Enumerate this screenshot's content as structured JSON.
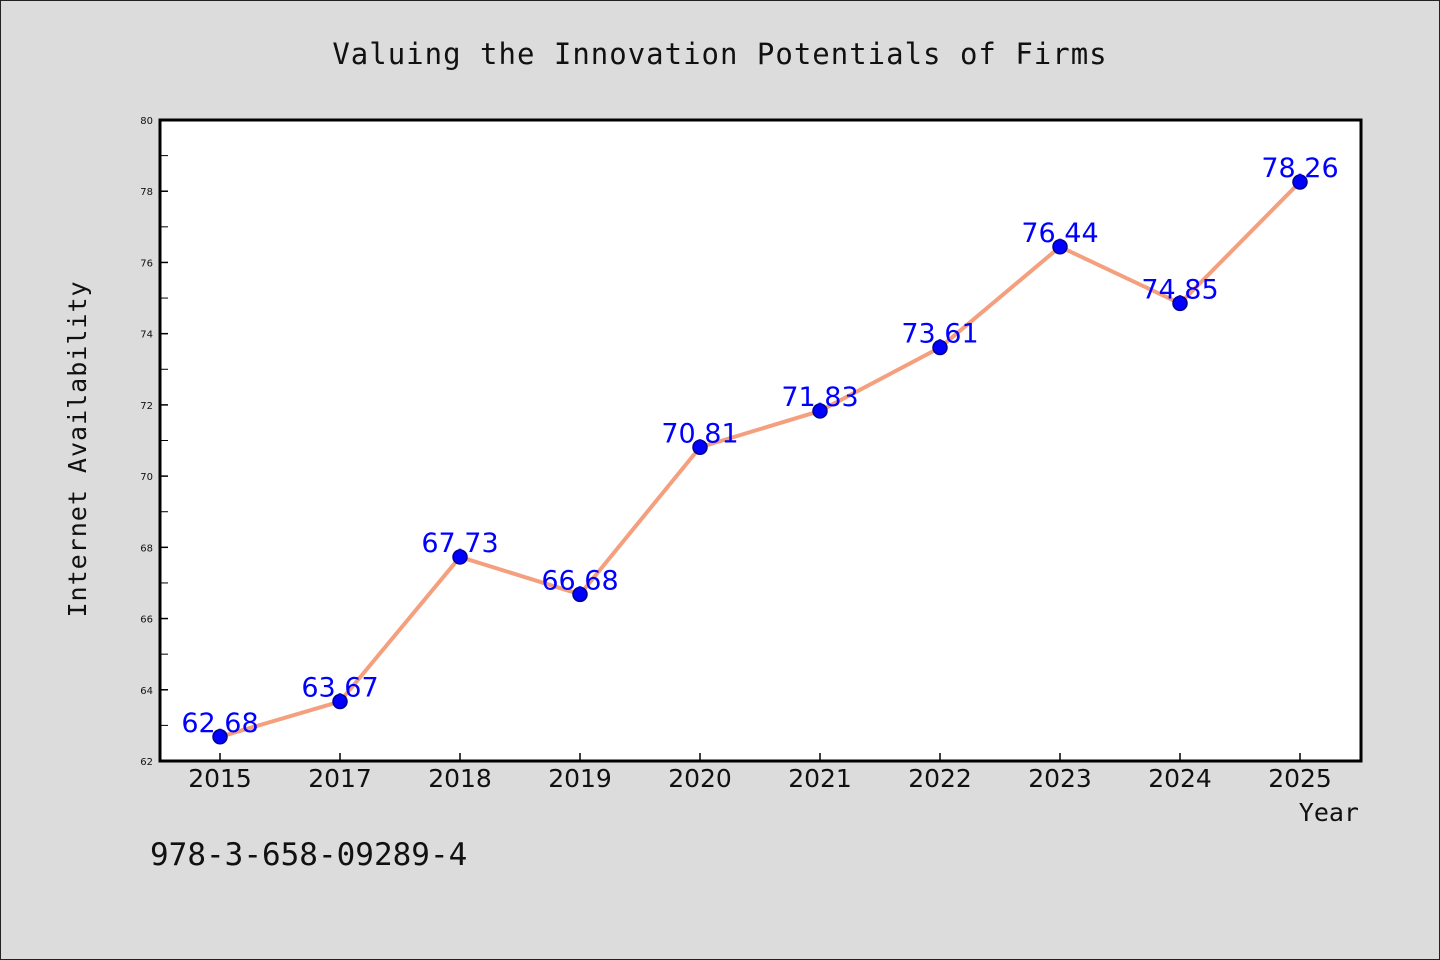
{
  "chart_data": {
    "type": "line",
    "title": "Valuing the Innovation Potentials of Firms",
    "xlabel": "Year",
    "ylabel": "Internet Availability",
    "categories": [
      "2015",
      "2017",
      "2018",
      "2019",
      "2020",
      "2021",
      "2022",
      "2023",
      "2024",
      "2025"
    ],
    "values": [
      62.68,
      63.67,
      67.73,
      66.68,
      70.81,
      71.83,
      73.61,
      76.44,
      74.85,
      78.26
    ],
    "value_labels": [
      "62.68",
      "63.67",
      "67.73",
      "66.68",
      "70.81",
      "71.83",
      "73.61",
      "76.44",
      "74.85",
      "78.26"
    ],
    "ylim": [
      62,
      80
    ],
    "yticks": [
      62,
      64,
      66,
      68,
      70,
      72,
      74,
      76,
      78,
      80
    ],
    "grid": false,
    "legend": "none",
    "colors": {
      "line": "#f4a07e",
      "marker": "#0000ff",
      "marker_edge": "#00008b",
      "label": "#0000ff",
      "background": "#dcdcdc",
      "plot_background": "#ffffff"
    }
  },
  "annotation": {
    "isbn": "978-3-658-09289-4"
  }
}
